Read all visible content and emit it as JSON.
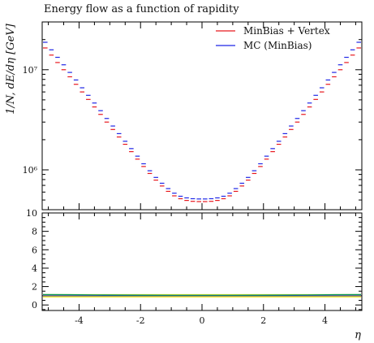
{
  "chart_data": {
    "type": "step",
    "title": "Energy flow as a function of rapidity",
    "main_panel": {
      "ylabel": "1/N, dE/dη [GeV]",
      "yscale": "log",
      "ylim": [
        400000,
        30000000
      ],
      "yticks": [
        {
          "value": 10000000,
          "label": "10⁷"
        },
        {
          "value": 1000000,
          "label": "10⁶"
        }
      ]
    },
    "xlabel": "η",
    "xlim": [
      -5.2,
      5.2
    ],
    "xticks": [
      {
        "value": -4,
        "label": "-4"
      },
      {
        "value": -2,
        "label": "-2"
      },
      {
        "value": 0,
        "label": "0"
      },
      {
        "value": 2,
        "label": "2"
      },
      {
        "value": 4,
        "label": "4"
      }
    ],
    "bins": {
      "start": -5.2,
      "width": 0.2,
      "count": 52
    },
    "series": [
      {
        "name": "MinBias + Vertex",
        "color": "#e8191f",
        "values": [
          16500000,
          14000000,
          11800000,
          10000000,
          8500000,
          7150000,
          6000000,
          5050000,
          4250000,
          3580000,
          3000000,
          2530000,
          2130000,
          1800000,
          1520000,
          1280000,
          1080000,
          920000,
          790000,
          690000,
          610000,
          550000,
          515000,
          495000,
          485000,
          482000,
          482000,
          485000,
          495000,
          515000,
          550000,
          610000,
          690000,
          790000,
          920000,
          1080000,
          1280000,
          1520000,
          1800000,
          2130000,
          2530000,
          3000000,
          3580000,
          4250000,
          5050000,
          6000000,
          7150000,
          8500000,
          10000000,
          11800000,
          14000000,
          16500000
        ]
      },
      {
        "name": "MC (MinBias)",
        "color": "#1f26e6",
        "values": [
          18800000,
          15800000,
          13300000,
          11200000,
          9400000,
          7900000,
          6600000,
          5550000,
          4650000,
          3900000,
          3260000,
          2740000,
          2300000,
          1930000,
          1630000,
          1370000,
          1150000,
          980000,
          840000,
          735000,
          650000,
          585000,
          545000,
          525000,
          515000,
          512000,
          512000,
          515000,
          525000,
          545000,
          585000,
          650000,
          735000,
          840000,
          980000,
          1150000,
          1370000,
          1630000,
          1930000,
          2300000,
          2740000,
          3260000,
          3900000,
          4650000,
          5550000,
          6600000,
          7900000,
          9400000,
          11200000,
          13300000,
          15800000,
          18800000
        ]
      }
    ],
    "ratio_panel": {
      "ylim": [
        -0.6,
        10
      ],
      "yticks": [
        {
          "value": 0,
          "label": "0"
        },
        {
          "value": 2,
          "label": "2"
        },
        {
          "value": 4,
          "label": "4"
        },
        {
          "value": 6,
          "label": "6"
        },
        {
          "value": 8,
          "label": "8"
        },
        {
          "value": 10,
          "label": "10"
        }
      ],
      "reference_value": 1.0,
      "band_color": "#f2e600",
      "reference_color": "#1f26e6",
      "ratio_color": "#0a9a55",
      "ratio_line": [
        1.13,
        1.12,
        1.1,
        1.08,
        1.07,
        1.06,
        1.06,
        1.06,
        1.07,
        1.08,
        1.1,
        1.12,
        1.13
      ]
    },
    "legend": {
      "position": "top-right"
    }
  }
}
